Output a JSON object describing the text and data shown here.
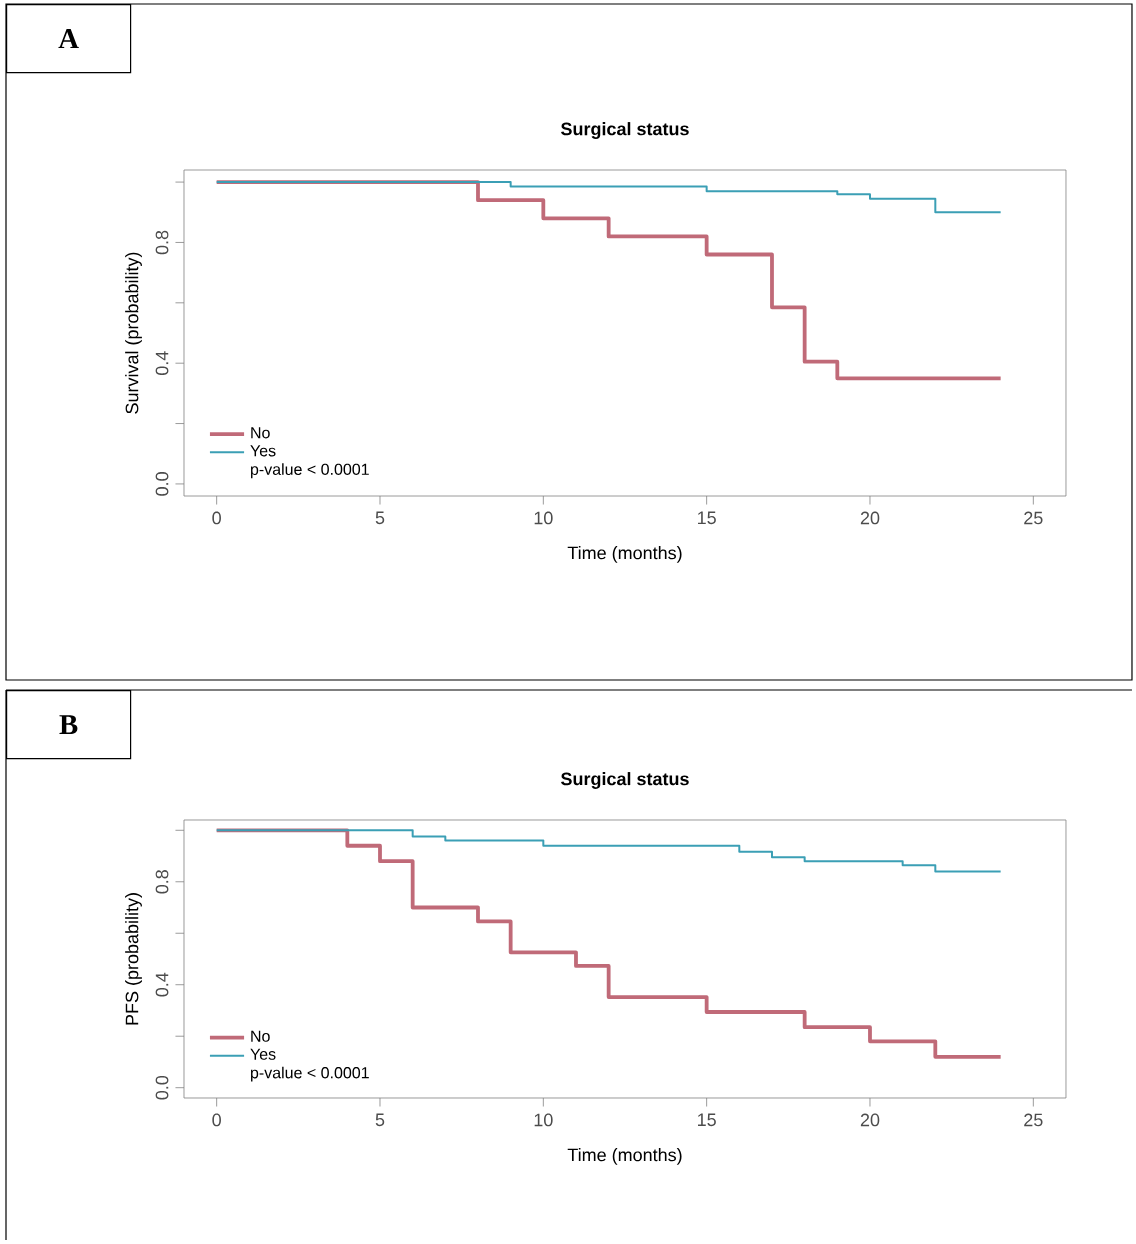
{
  "chart_data": [
    {
      "type": "step",
      "title": "Surgical status",
      "xlabel": "Time (months)",
      "ylabel": "Survival (probability)",
      "annotations": [
        "A",
        "p-value < 0.0001"
      ],
      "xlim": [
        -1,
        26
      ],
      "ylim": [
        -0.04,
        1.04
      ],
      "xticks": [
        0,
        5,
        10,
        15,
        20,
        25
      ],
      "yticks": [
        {
          "value": 0,
          "label": "0.0"
        },
        {
          "value": 0.2,
          "label": null
        },
        {
          "value": 0.4,
          "label": "0.4"
        },
        {
          "value": 0.6,
          "label": null
        },
        {
          "value": 0.8,
          "label": "0.8"
        },
        {
          "value": 1,
          "label": null
        }
      ],
      "legend": "bottom left",
      "grid": false,
      "marker": "none",
      "series": [
        {
          "name": "No",
          "color": "#c06a78",
          "x": [
            0,
            8,
            10,
            12,
            15,
            17,
            18,
            19,
            24
          ],
          "values": [
            1,
            0.94,
            0.88,
            0.82,
            0.76,
            0.585,
            0.405,
            0.35,
            0.35
          ]
        },
        {
          "name": "Yes",
          "color": "#3b9fb5",
          "x": [
            0,
            9,
            15,
            19,
            20,
            22,
            24
          ],
          "values": [
            1,
            0.985,
            0.97,
            0.96,
            0.945,
            0.9,
            0.9
          ]
        }
      ]
    },
    {
      "type": "step",
      "title": "Surgical status",
      "xlabel": "Time (months)",
      "ylabel": "PFS (probability)",
      "annotations": [
        "B",
        "p-value < 0.0001"
      ],
      "xlim": [
        -1,
        26
      ],
      "ylim": [
        -0.04,
        1.04
      ],
      "xticks": [
        0,
        5,
        10,
        15,
        20,
        25
      ],
      "yticks": [
        {
          "value": 0,
          "label": "0.0"
        },
        {
          "value": 0.2,
          "label": null
        },
        {
          "value": 0.4,
          "label": "0.4"
        },
        {
          "value": 0.6,
          "label": null
        },
        {
          "value": 0.8,
          "label": "0.8"
        },
        {
          "value": 1,
          "label": null
        }
      ],
      "legend": "bottom left",
      "grid": false,
      "marker": "none",
      "series": [
        {
          "name": "No",
          "color": "#c06a78",
          "x": [
            0,
            4,
            5,
            6,
            8,
            9,
            11,
            12,
            15,
            18,
            20,
            22,
            24
          ],
          "values": [
            1,
            0.94,
            0.88,
            0.7,
            0.646,
            0.526,
            0.473,
            0.352,
            0.294,
            0.235,
            0.18,
            0.12,
            0.12
          ]
        },
        {
          "name": "Yes",
          "color": "#3b9fb5",
          "x": [
            0,
            6,
            7,
            10,
            16,
            17,
            18,
            21,
            22,
            24
          ],
          "values": [
            1,
            0.976,
            0.96,
            0.94,
            0.917,
            0.895,
            0.88,
            0.864,
            0.84,
            0.84
          ]
        }
      ]
    }
  ]
}
